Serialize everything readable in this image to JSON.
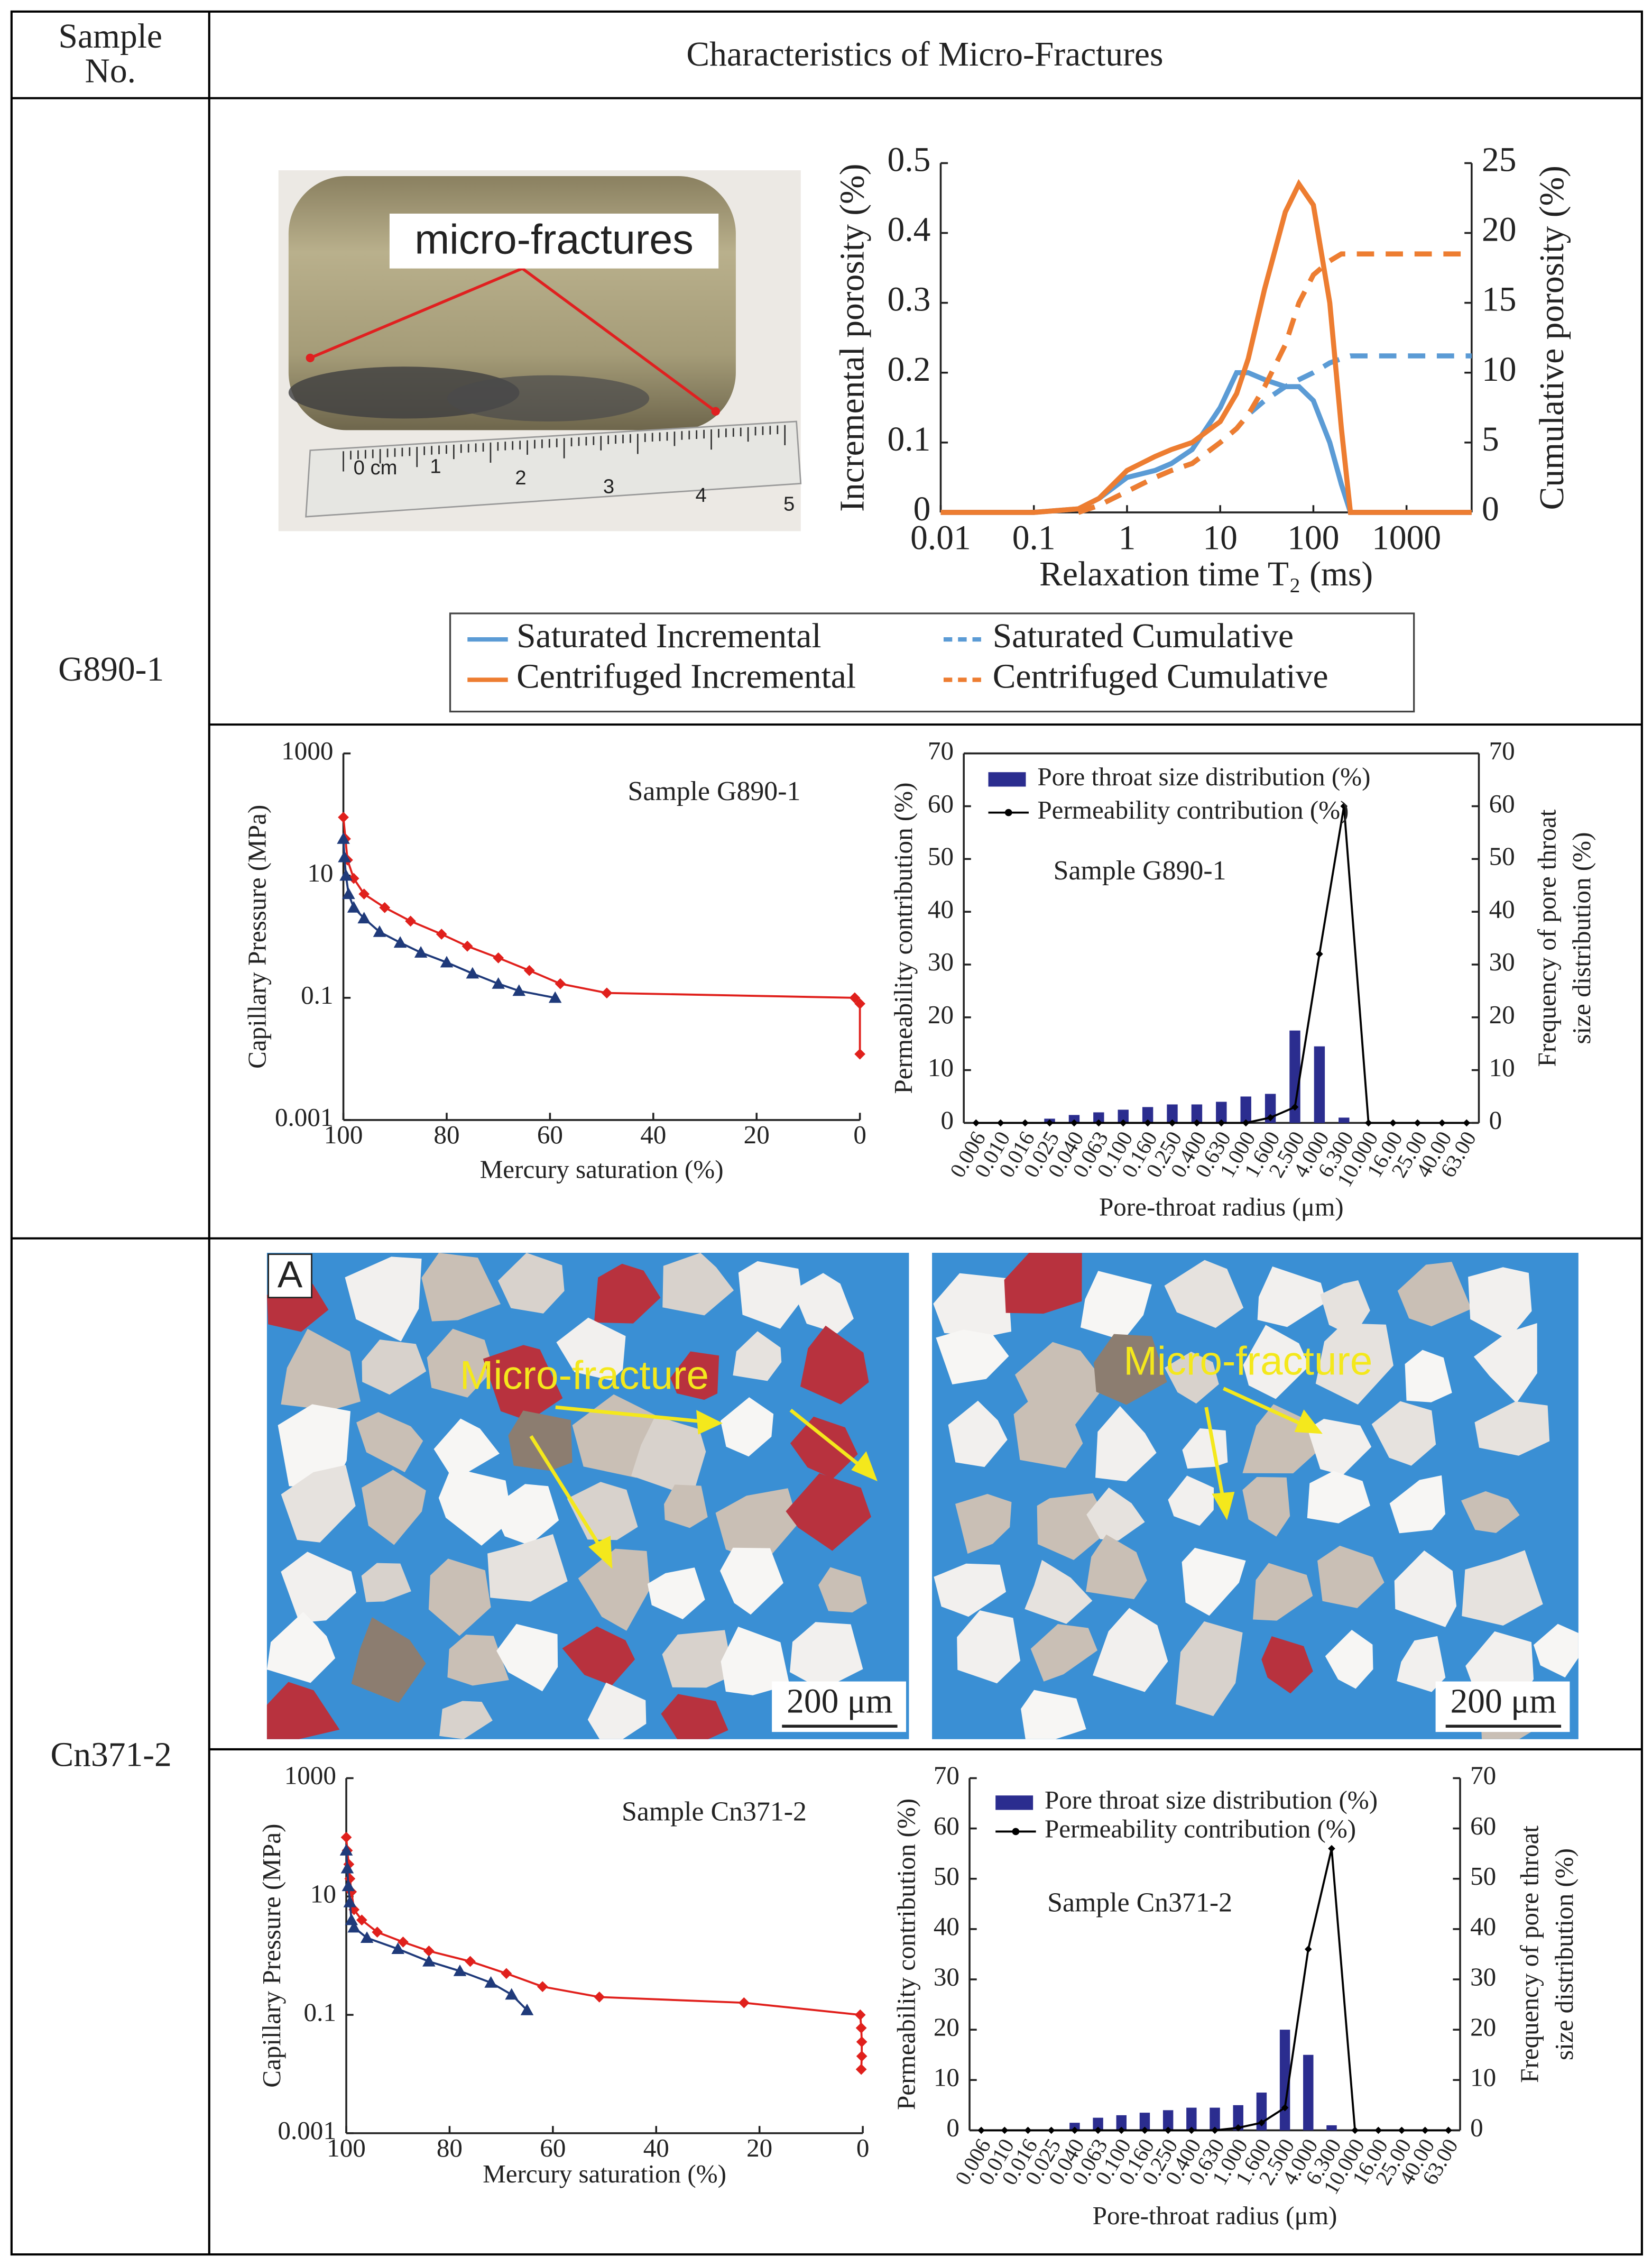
{
  "table": {
    "header": [
      "Sample No.",
      "Characteristics of Micro-Fractures"
    ],
    "rows": [
      {
        "sample": "G890-1"
      },
      {
        "sample": "Cn371-2"
      }
    ]
  },
  "photos": {
    "core": {
      "label": "micro-fractures",
      "ruler": [
        "0 cm",
        "1",
        "2",
        "3",
        "4",
        "5"
      ]
    },
    "thin_sections": [
      {
        "panel": "A",
        "label": "Micro-fracture",
        "scale_bar": "200 μm"
      },
      {
        "label": "Micro-fracture",
        "scale_bar": "200 μm"
      }
    ]
  },
  "chart_data": [
    {
      "type": "line",
      "xlabel": "Relaxation time T₂ (ms)",
      "ylabel": "Incremental porosity (%)",
      "y2label": "Cumulative porosity (%)",
      "xlog": true,
      "xlim": [
        0.01,
        5000
      ],
      "xticks": [
        0.01,
        0.1,
        1,
        10,
        100,
        1000
      ],
      "ylim": [
        0,
        0.5
      ],
      "yticks": [
        0,
        0.1,
        0.2,
        0.3,
        0.4,
        0.5
      ],
      "y2lim": [
        0,
        25
      ],
      "y2ticks": [
        0,
        5,
        10,
        15,
        20,
        25
      ],
      "x": [
        0.01,
        0.1,
        0.3,
        0.5,
        1,
        2,
        3,
        5,
        10,
        15,
        20,
        30,
        50,
        70,
        100,
        150,
        200,
        250,
        300,
        500,
        1000,
        2000,
        5000
      ],
      "series": [
        {
          "name": "Saturated Incremental",
          "color": "#5b9bd5",
          "line_style": "solid",
          "values": [
            0,
            0,
            0.005,
            0.02,
            0.05,
            0.06,
            0.07,
            0.09,
            0.15,
            0.2,
            0.2,
            0.19,
            0.18,
            0.18,
            0.16,
            0.1,
            0.04,
            0,
            0,
            0,
            0,
            0,
            0
          ]
        },
        {
          "name": "Saturated Cumulative",
          "color": "#5b9bd5",
          "line_style": "dashed",
          "axis": "y2",
          "values": [
            null,
            null,
            0,
            0.5,
            1.5,
            2.5,
            3,
            3.5,
            5,
            6,
            7,
            8,
            9,
            9.5,
            10,
            10.7,
            11,
            11.2,
            11.2,
            11.2,
            11.2,
            11.2,
            11.2
          ]
        },
        {
          "name": "Centrifuged Incremental",
          "color": "#ed7d31",
          "line_style": "solid",
          "values": [
            0,
            0,
            0.005,
            0.02,
            0.06,
            0.08,
            0.09,
            0.1,
            0.13,
            0.17,
            0.22,
            0.32,
            0.43,
            0.47,
            0.44,
            0.3,
            0.12,
            0,
            0,
            0,
            0,
            0,
            0
          ]
        },
        {
          "name": "Centrifuged Cumulative",
          "color": "#ed7d31",
          "line_style": "dashed",
          "axis": "y2",
          "values": [
            null,
            null,
            0,
            0.5,
            1.5,
            2.5,
            3,
            3.5,
            5,
            6,
            7,
            9,
            12,
            15,
            17,
            18,
            18.5,
            18.5,
            18.5,
            18.5,
            18.5,
            18.5,
            18.5
          ]
        }
      ]
    },
    {
      "type": "line",
      "annotation": "Sample G890-1",
      "xlabel": "Mercury saturation (%)",
      "ylabel": "Capillary Pressure (MPa)",
      "ylog": true,
      "xlim": [
        100,
        0
      ],
      "xticks": [
        100,
        80,
        60,
        40,
        20,
        0
      ],
      "ylim": [
        0.001,
        1000
      ],
      "yticks": [
        0.001,
        0.1,
        10,
        1000
      ],
      "series": [
        {
          "color": "#e0201c",
          "marker": "diamond",
          "x": [
            100,
            99.6,
            99.2,
            98,
            96,
            92,
            87,
            81,
            76,
            70,
            64,
            58,
            49,
            1,
            0,
            0
          ],
          "values": [
            90,
            40,
            18,
            9,
            5,
            3,
            1.8,
            1.1,
            0.7,
            0.45,
            0.28,
            0.17,
            0.12,
            0.1,
            0.08,
            0.012
          ]
        },
        {
          "color": "#1f3a7a",
          "marker": "triangle",
          "x": [
            100,
            99.8,
            99.5,
            99,
            98,
            96,
            93,
            89,
            85,
            80,
            75,
            70,
            66,
            59
          ],
          "values": [
            40,
            20,
            10,
            5,
            3,
            2,
            1.2,
            0.8,
            0.55,
            0.38,
            0.25,
            0.17,
            0.13,
            0.1
          ]
        }
      ]
    },
    {
      "type": "bar",
      "annotation": "Sample G890-1",
      "xlabel": "Pore-throat radius (μm)",
      "ylabel": "Permeability contribution (%)",
      "y2label": [
        "Frequency of pore throat",
        "size distribution (%)"
      ],
      "categories": [
        "0.006",
        "0.010",
        "0.016",
        "0.025",
        "0.040",
        "0.063",
        "0.100",
        "0.160",
        "0.250",
        "0.400",
        "0.630",
        "1.000",
        "1.600",
        "2.500",
        "4.000",
        "6.300",
        "10.000",
        "16.00",
        "25.00",
        "40.00",
        "63.00"
      ],
      "ylim": [
        0,
        70
      ],
      "yticks": [
        0,
        10,
        20,
        30,
        40,
        50,
        60,
        70
      ],
      "y2lim": [
        0,
        70
      ],
      "y2ticks": [
        0,
        10,
        20,
        30,
        40,
        50,
        60,
        70
      ],
      "series": [
        {
          "name": "Pore throat size distribution (%)",
          "type": "bar",
          "axis": "y2",
          "color": "#2b2d8f",
          "values": [
            0,
            0,
            0,
            0.8,
            1.5,
            2,
            2.5,
            3,
            3.5,
            3.5,
            4,
            5,
            5.5,
            17.5,
            14.5,
            1,
            0,
            0,
            0,
            0,
            0
          ]
        },
        {
          "name": "Permeability contribution (%)",
          "type": "line",
          "color": "#000000",
          "values": [
            0,
            0,
            0,
            0,
            0,
            0,
            0,
            0,
            0,
            0,
            0,
            0,
            1,
            3,
            32,
            60,
            0,
            0,
            0,
            0,
            0
          ]
        }
      ]
    },
    {
      "type": "line",
      "annotation": "Sample Cn371-2",
      "xlabel": "Mercury saturation (%)",
      "ylabel": "Capillary Pressure (MPa)",
      "ylog": true,
      "xlim": [
        100,
        0
      ],
      "xticks": [
        100,
        80,
        60,
        40,
        20,
        0
      ],
      "ylim": [
        0.001,
        1000
      ],
      "yticks": [
        0.001,
        0.1,
        10,
        1000
      ],
      "series": [
        {
          "color": "#e0201c",
          "marker": "diamond",
          "x": [
            100,
            99.8,
            99.5,
            99.3,
            99,
            98.5,
            97,
            94,
            89,
            84,
            76,
            69,
            62,
            51,
            23,
            0.5,
            0.3,
            0.2,
            0.2,
            0.3
          ],
          "values": [
            100,
            60,
            35,
            20,
            12,
            6,
            4,
            2.5,
            1.7,
            1.2,
            0.8,
            0.5,
            0.3,
            0.2,
            0.16,
            0.1,
            0.06,
            0.035,
            0.02,
            0.012
          ]
        },
        {
          "color": "#1f3a7a",
          "marker": "triangle",
          "x": [
            100,
            99.8,
            99.6,
            99.3,
            99,
            98.5,
            96,
            90,
            84,
            78,
            72,
            68,
            65
          ],
          "values": [
            60,
            30,
            15,
            8,
            4,
            3,
            2,
            1.3,
            0.8,
            0.55,
            0.35,
            0.22,
            0.12
          ]
        }
      ]
    },
    {
      "type": "bar",
      "annotation": "Sample Cn371-2",
      "xlabel": "Pore-throat radius (μm)",
      "ylabel": "Permeability contribution (%)",
      "y2label": [
        "Frequency of pore throat",
        "size distribution (%)"
      ],
      "categories": [
        "0.006",
        "0.010",
        "0.016",
        "0.025",
        "0.040",
        "0.063",
        "0.100",
        "0.160",
        "0.250",
        "0.400",
        "0.630",
        "1.000",
        "1.600",
        "2.500",
        "4.000",
        "6.300",
        "10.000",
        "16.00",
        "25.00",
        "40.00",
        "63.00"
      ],
      "ylim": [
        0,
        70
      ],
      "yticks": [
        0,
        10,
        20,
        30,
        40,
        50,
        60,
        70
      ],
      "y2lim": [
        0,
        70
      ],
      "y2ticks": [
        0,
        10,
        20,
        30,
        40,
        50,
        60,
        70
      ],
      "series": [
        {
          "name": "Pore throat size distribution (%)",
          "type": "bar",
          "axis": "y2",
          "color": "#2b2d8f",
          "values": [
            0,
            0,
            0,
            0,
            1.5,
            2.5,
            3,
            3.5,
            4,
            4.5,
            4.5,
            5,
            7.5,
            20,
            15,
            1,
            0,
            0,
            0,
            0,
            0
          ]
        },
        {
          "name": "Permeability contribution (%)",
          "type": "line",
          "color": "#000000",
          "values": [
            0,
            0,
            0,
            0,
            0,
            0,
            0,
            0,
            0,
            0,
            0,
            0.5,
            1.5,
            4.5,
            36,
            56,
            0,
            0,
            0,
            0,
            0
          ]
        }
      ]
    }
  ]
}
